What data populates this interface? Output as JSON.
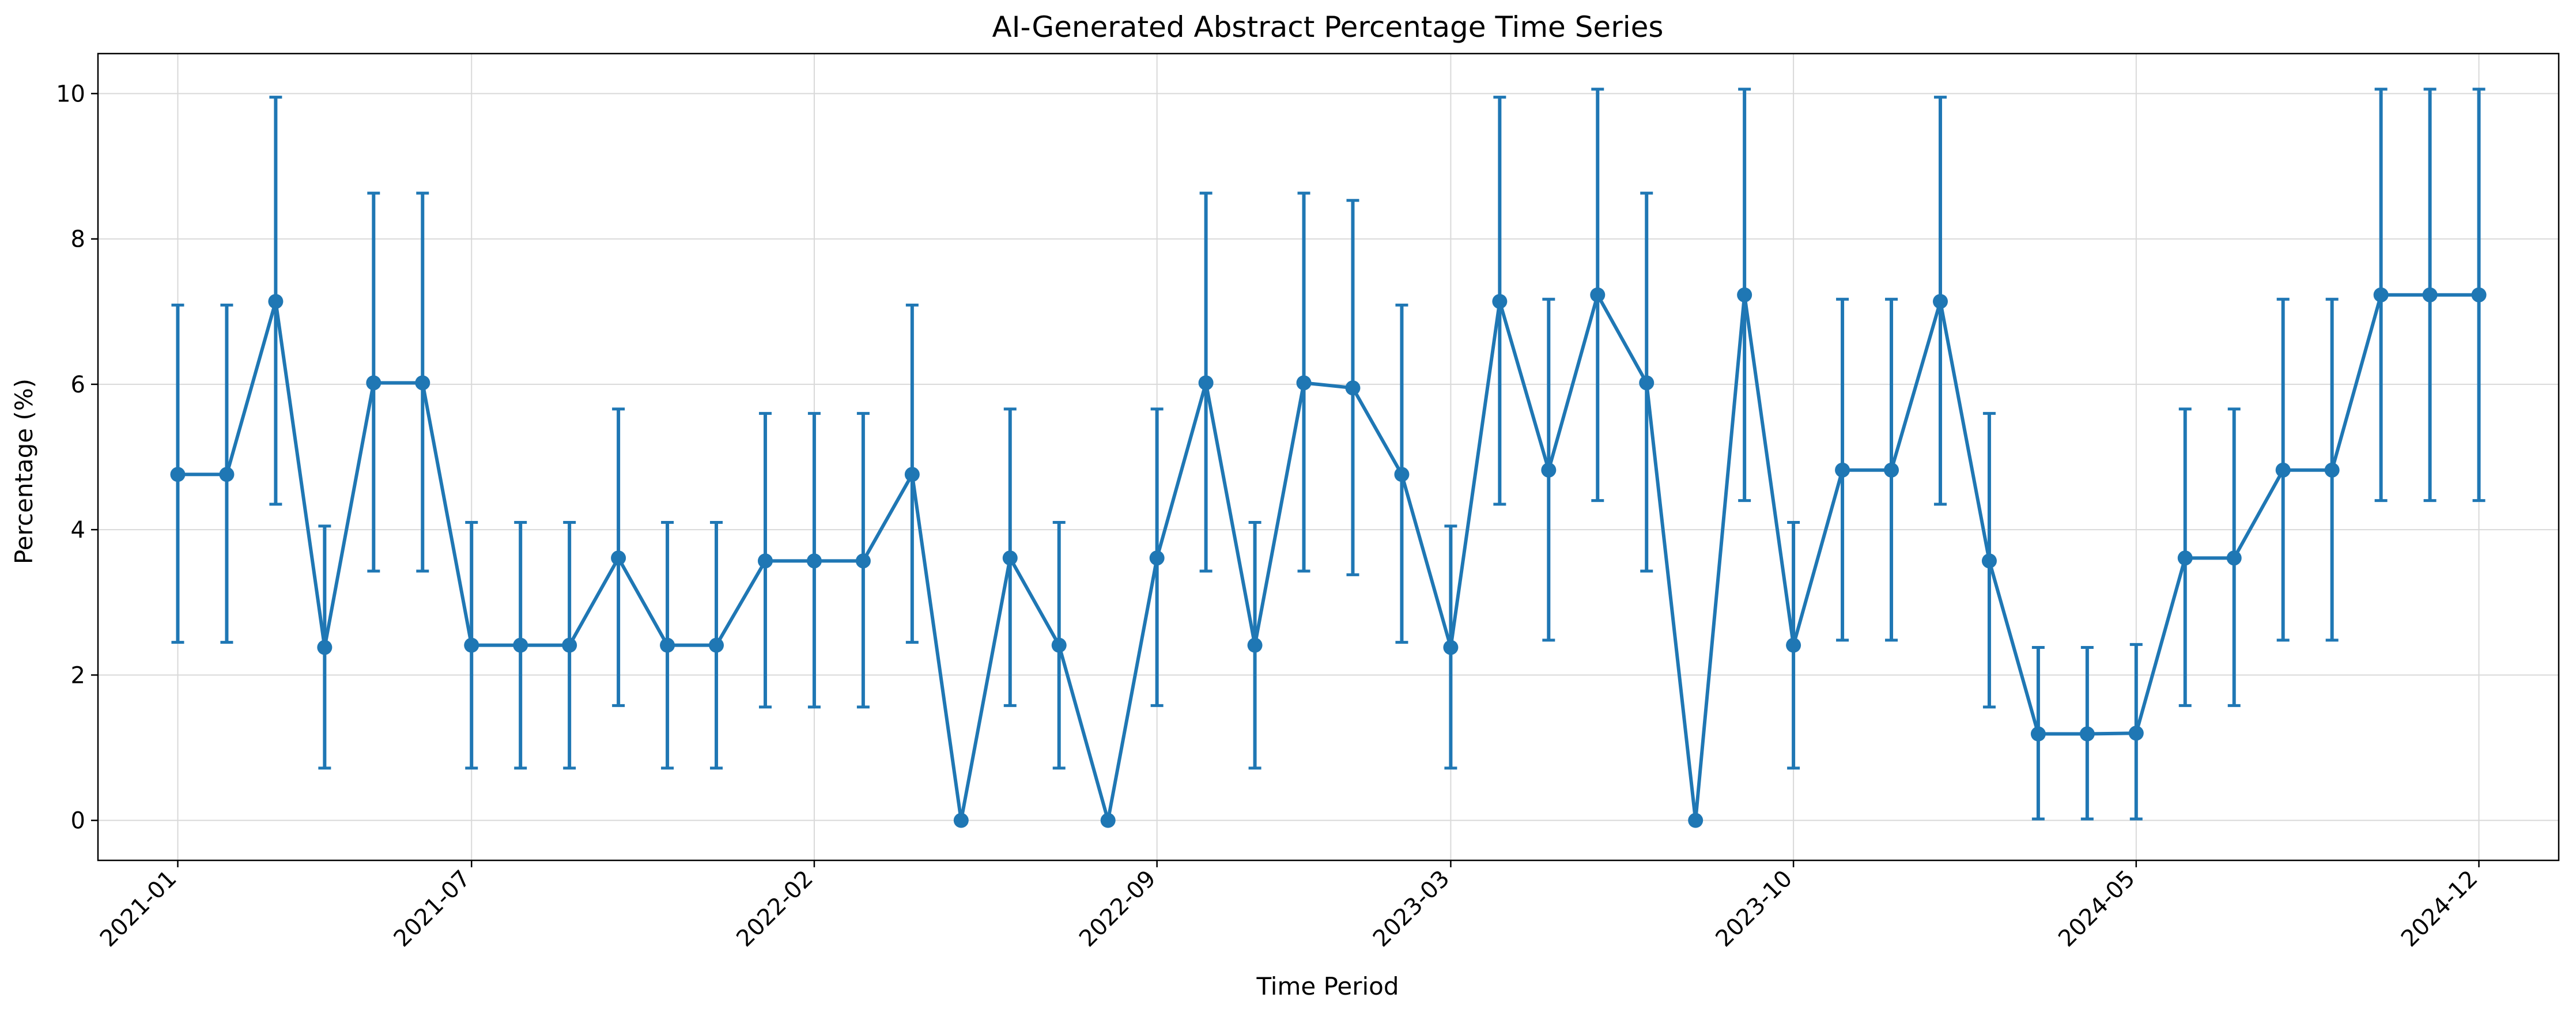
{
  "chart_data": {
    "type": "line",
    "title": "AI-Generated Abstract Percentage Time Series",
    "xlabel": "Time Period",
    "ylabel": "Percentage (%)",
    "x_ticks": [
      "2021-01",
      "2021-07",
      "2022-02",
      "2022-09",
      "2023-03",
      "2023-10",
      "2024-05",
      "2024-12"
    ],
    "y_ticks": [
      "0",
      "2",
      "4",
      "6",
      "8",
      "10"
    ],
    "x": [
      "2021-01",
      "2021-02",
      "2021-03",
      "2021-04",
      "2021-05",
      "2021-06",
      "2021-07",
      "2021-08",
      "2021-09",
      "2021-10",
      "2021-11",
      "2021-12",
      "2022-01",
      "2022-02",
      "2022-03",
      "2022-04",
      "2022-05",
      "2022-06",
      "2022-07",
      "2022-08",
      "2022-09",
      "2022-10",
      "2022-11",
      "2022-12",
      "2023-01",
      "2023-02",
      "2023-03",
      "2023-04",
      "2023-05",
      "2023-06",
      "2023-07",
      "2023-08",
      "2023-09",
      "2023-10",
      "2023-11",
      "2023-12",
      "2024-01",
      "2024-02",
      "2024-03",
      "2024-04",
      "2024-05",
      "2024-06",
      "2024-07",
      "2024-08",
      "2024-09",
      "2024-10",
      "2024-11",
      "2024-12"
    ],
    "series": [
      {
        "values": [
          4.76,
          4.76,
          7.14,
          2.38,
          6.02,
          6.02,
          2.41,
          2.41,
          2.41,
          3.61,
          2.41,
          2.41,
          3.57,
          3.57,
          3.57,
          4.76,
          0.0,
          3.61,
          2.41,
          0.0,
          3.61,
          6.02,
          2.41,
          6.02,
          5.95,
          4.76,
          2.38,
          7.14,
          4.82,
          7.23,
          6.02,
          0.0,
          7.23,
          2.41,
          4.82,
          4.82,
          7.14,
          3.57,
          1.19,
          1.19,
          1.2,
          3.61,
          3.61,
          4.82,
          4.82,
          7.23,
          7.23,
          7.23
        ],
        "err_low": [
          2.45,
          2.45,
          4.35,
          0.72,
          3.43,
          3.43,
          0.72,
          0.72,
          0.72,
          1.58,
          0.72,
          0.72,
          1.56,
          1.56,
          1.56,
          2.45,
          0.0,
          1.58,
          0.72,
          0.0,
          1.58,
          3.43,
          0.72,
          3.43,
          3.38,
          2.45,
          0.72,
          4.35,
          2.48,
          4.4,
          3.43,
          0.0,
          4.4,
          0.72,
          2.48,
          2.48,
          4.35,
          1.56,
          0.02,
          0.02,
          0.02,
          1.58,
          1.58,
          2.48,
          2.48,
          4.4,
          4.4,
          4.4
        ],
        "err_high": [
          7.09,
          7.09,
          9.95,
          4.05,
          8.63,
          8.63,
          4.1,
          4.1,
          4.1,
          5.66,
          4.1,
          4.1,
          5.6,
          5.6,
          5.6,
          7.09,
          0.0,
          5.66,
          4.1,
          0.0,
          5.66,
          8.63,
          4.1,
          8.63,
          8.53,
          7.09,
          4.05,
          9.95,
          7.17,
          10.06,
          8.63,
          0.0,
          10.06,
          4.1,
          7.17,
          7.17,
          9.95,
          5.6,
          2.38,
          2.38,
          2.42,
          5.66,
          5.66,
          7.17,
          7.17,
          10.06,
          10.06,
          10.06
        ],
        "color": "#1f77b4"
      }
    ],
    "ylim": [
      -0.55,
      10.55
    ],
    "grid": true,
    "legend": "none"
  }
}
